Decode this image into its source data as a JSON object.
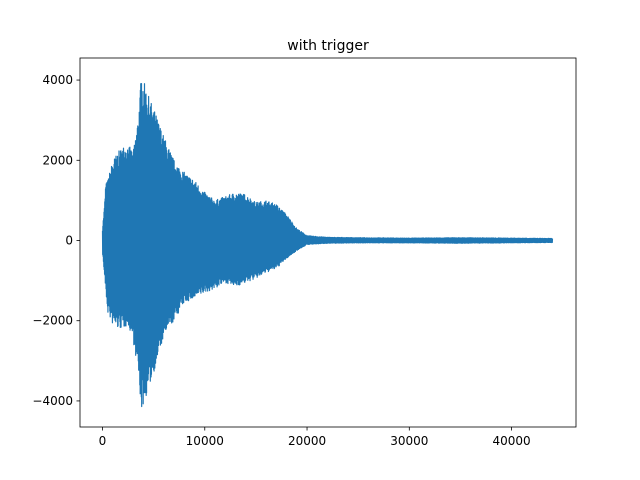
{
  "chart_data": {
    "type": "line",
    "title": "with trigger",
    "xlabel": "",
    "ylabel": "",
    "xlim": [
      -2200,
      46300
    ],
    "ylim": [
      -4650,
      4550
    ],
    "x_ticks": [
      0,
      10000,
      20000,
      30000,
      40000
    ],
    "x_tick_labels": [
      "0",
      "10000",
      "20000",
      "30000",
      "40000"
    ],
    "y_ticks": [
      -4000,
      -2000,
      0,
      2000,
      4000
    ],
    "y_tick_labels": [
      "−4000",
      "−2000",
      "0",
      "2000",
      "4000"
    ],
    "grid": false,
    "series_color": "#1f77b4",
    "series": [
      {
        "envelope": {
          "x": [
            0,
            200,
            300,
            500,
            1000,
            1500,
            2000,
            2500,
            3000,
            3500,
            3800,
            4000,
            4500,
            5000,
            6000,
            7000,
            8000,
            9000,
            10000,
            11000,
            12000,
            13000,
            14000,
            15000,
            16000,
            17000,
            18000,
            19000,
            20000,
            22000,
            25000,
            30000,
            35000,
            40000,
            44000
          ],
          "upper": [
            300,
            900,
            1400,
            1500,
            2000,
            2200,
            2350,
            2400,
            2200,
            3100,
            4150,
            4000,
            3600,
            3300,
            2600,
            2000,
            1700,
            1500,
            1200,
            1000,
            1100,
            1200,
            1150,
            950,
            1000,
            900,
            650,
            300,
            120,
            80,
            70,
            60,
            70,
            60,
            50
          ],
          "lower": [
            -300,
            -900,
            -1200,
            -1800,
            -2100,
            -2200,
            -2200,
            -2100,
            -2500,
            -3300,
            -4250,
            -4100,
            -3700,
            -3300,
            -2400,
            -2000,
            -1550,
            -1450,
            -1300,
            -1200,
            -1050,
            -1150,
            -1050,
            -950,
            -800,
            -700,
            -450,
            -250,
            -100,
            -70,
            -60,
            -60,
            -70,
            -60,
            -50
          ]
        }
      }
    ]
  }
}
